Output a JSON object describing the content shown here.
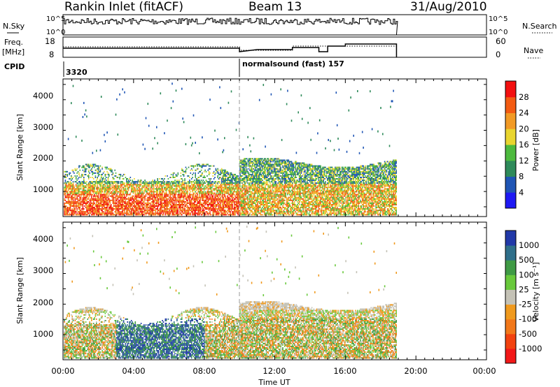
{
  "header": {
    "station": "Rankin Inlet (fitACF)",
    "beam": "Beam 13",
    "date": "31/Aug/2010"
  },
  "strips": {
    "nsky_label": "N.Sky",
    "nsearch_label": "N.Search",
    "nsky_ticks": [
      "10^5",
      "10^0"
    ],
    "freq_label": "Freq.",
    "freq_unit": "[MHz]",
    "freq_ticks": [
      "18",
      "8"
    ],
    "nave_label": "Nave",
    "nave_ticks": [
      "60",
      "0"
    ],
    "cpid_label": "CPID",
    "cpid_values": [
      "3320",
      "normalsound (fast) 157"
    ]
  },
  "chart_data": [
    {
      "type": "heatmap",
      "panel": "power",
      "ylabel": "Slant Range [km]",
      "x_ticks": [
        "00:00",
        "04:00",
        "08:00",
        "12:00",
        "16:00",
        "20:00",
        "00:00"
      ],
      "y_ticks": [
        "1000",
        "2000",
        "3000",
        "4000"
      ],
      "xlim": [
        0,
        24
      ],
      "ylim": [
        180,
        4500
      ],
      "colorbar": {
        "label": "Power [dB]",
        "ticks": [
          "4",
          "8",
          "12",
          "16",
          "20",
          "24",
          "28"
        ],
        "colors": [
          "#1e19f4",
          "#1f55b5",
          "#2e8a5a",
          "#4dba3e",
          "#e9d52f",
          "#f29a25",
          "#f35b12",
          "#f31010"
        ]
      },
      "data_end_hour": 18.9,
      "notes": "Backscatter concentrated 300-2100 km; strongest (red) near 400-900 km before 10 UT"
    },
    {
      "type": "heatmap",
      "panel": "velocity",
      "ylabel": "Slant Range [km]",
      "xlabel": "Time UT",
      "x_ticks": [
        "00:00",
        "04:00",
        "08:00",
        "12:00",
        "16:00",
        "20:00",
        "00:00"
      ],
      "y_ticks": [
        "1000",
        "2000",
        "3000",
        "4000"
      ],
      "xlim": [
        0,
        24
      ],
      "ylim": [
        180,
        4500
      ],
      "colorbar": {
        "label": "Velocity [m s-1]",
        "ticks": [
          "1000",
          "500",
          "100",
          "25",
          "-25",
          "-100",
          "-500",
          "-1000"
        ],
        "colors": [
          "#2139a8",
          "#2f6f8a",
          "#3f9a45",
          "#69c93c",
          "#c4c2b6",
          "#f09a1e",
          "#f2781a",
          "#f2420f",
          "#f21818"
        ]
      },
      "data_end_hour": 18.9,
      "notes": "Grey ground scatter band near 1800-2100 km; orange away flows and blue/green toward flows below 1500 km"
    }
  ]
}
